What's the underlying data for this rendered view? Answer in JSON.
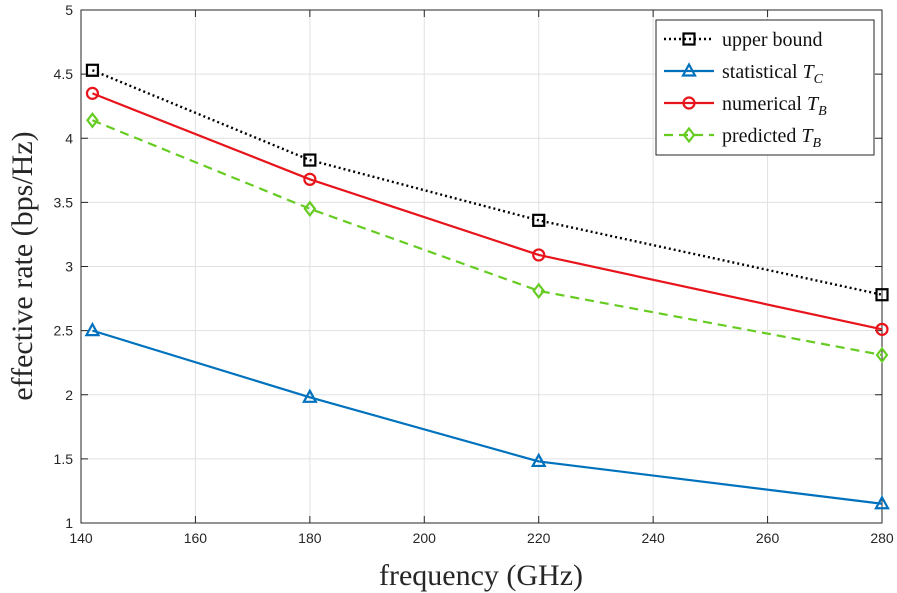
{
  "chart_data": {
    "type": "line",
    "title": "",
    "xlabel": "frequency (GHz)",
    "ylabel": "effective rate (bps/Hz)",
    "xlim": [
      140,
      280
    ],
    "ylim": [
      1,
      5
    ],
    "x_ticks": [
      140,
      160,
      180,
      200,
      220,
      240,
      260,
      280
    ],
    "y_ticks": [
      1,
      1.5,
      2,
      2.5,
      3,
      3.5,
      4,
      4.5,
      5
    ],
    "x_tick_labels": [
      "140",
      "160",
      "180",
      "200",
      "220",
      "240",
      "260",
      "280"
    ],
    "y_tick_labels": [
      "1",
      "1.5",
      "2",
      "2.5",
      "3",
      "3.5",
      "4",
      "4.5",
      "5"
    ],
    "grid": true,
    "legend_position": "top-right",
    "x": [
      142,
      180,
      220,
      280
    ],
    "series": [
      {
        "name": "upper bound",
        "legend_main": "upper bound",
        "legend_math": "",
        "legend_sub": "",
        "values": [
          4.53,
          3.83,
          3.36,
          2.78
        ],
        "color": "#000000",
        "line_style": "dotted",
        "marker": "square"
      },
      {
        "name": "statistical T_C",
        "legend_main": "statistical ",
        "legend_math": "T",
        "legend_sub": "C",
        "values": [
          2.5,
          1.98,
          1.48,
          1.15
        ],
        "color": "#0072BD",
        "line_style": "solid",
        "marker": "triangle"
      },
      {
        "name": "numerical T_B",
        "legend_main": "numerical ",
        "legend_math": "T",
        "legend_sub": "B",
        "values": [
          4.35,
          3.68,
          3.09,
          2.51
        ],
        "color": "#E8141B",
        "line_style": "solid",
        "marker": "circle"
      },
      {
        "name": "predicted T_B",
        "legend_main": "predicted ",
        "legend_math": "T",
        "legend_sub": "B",
        "values": [
          4.14,
          3.45,
          2.81,
          2.31
        ],
        "color": "#66CC22",
        "line_style": "dashed",
        "marker": "diamond"
      }
    ]
  }
}
